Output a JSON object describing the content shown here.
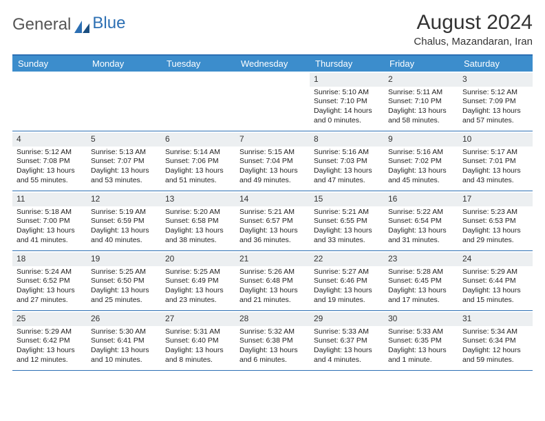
{
  "brand": {
    "part1": "General",
    "part2": "Blue"
  },
  "title": "August 2024",
  "location": "Chalus, Mazandaran, Iran",
  "colors": {
    "header_bg": "#3c8dcc",
    "border": "#2c6fb3",
    "daynum_bg": "#eceff1",
    "text": "#222222",
    "background": "#ffffff"
  },
  "dayNames": [
    "Sunday",
    "Monday",
    "Tuesday",
    "Wednesday",
    "Thursday",
    "Friday",
    "Saturday"
  ],
  "weeks": [
    [
      {
        "n": "",
        "sr": "",
        "ss": "",
        "dl": ""
      },
      {
        "n": "",
        "sr": "",
        "ss": "",
        "dl": ""
      },
      {
        "n": "",
        "sr": "",
        "ss": "",
        "dl": ""
      },
      {
        "n": "",
        "sr": "",
        "ss": "",
        "dl": ""
      },
      {
        "n": "1",
        "sr": "5:10 AM",
        "ss": "7:10 PM",
        "dl": "14 hours and 0 minutes."
      },
      {
        "n": "2",
        "sr": "5:11 AM",
        "ss": "7:10 PM",
        "dl": "13 hours and 58 minutes."
      },
      {
        "n": "3",
        "sr": "5:12 AM",
        "ss": "7:09 PM",
        "dl": "13 hours and 57 minutes."
      }
    ],
    [
      {
        "n": "4",
        "sr": "5:12 AM",
        "ss": "7:08 PM",
        "dl": "13 hours and 55 minutes."
      },
      {
        "n": "5",
        "sr": "5:13 AM",
        "ss": "7:07 PM",
        "dl": "13 hours and 53 minutes."
      },
      {
        "n": "6",
        "sr": "5:14 AM",
        "ss": "7:06 PM",
        "dl": "13 hours and 51 minutes."
      },
      {
        "n": "7",
        "sr": "5:15 AM",
        "ss": "7:04 PM",
        "dl": "13 hours and 49 minutes."
      },
      {
        "n": "8",
        "sr": "5:16 AM",
        "ss": "7:03 PM",
        "dl": "13 hours and 47 minutes."
      },
      {
        "n": "9",
        "sr": "5:16 AM",
        "ss": "7:02 PM",
        "dl": "13 hours and 45 minutes."
      },
      {
        "n": "10",
        "sr": "5:17 AM",
        "ss": "7:01 PM",
        "dl": "13 hours and 43 minutes."
      }
    ],
    [
      {
        "n": "11",
        "sr": "5:18 AM",
        "ss": "7:00 PM",
        "dl": "13 hours and 41 minutes."
      },
      {
        "n": "12",
        "sr": "5:19 AM",
        "ss": "6:59 PM",
        "dl": "13 hours and 40 minutes."
      },
      {
        "n": "13",
        "sr": "5:20 AM",
        "ss": "6:58 PM",
        "dl": "13 hours and 38 minutes."
      },
      {
        "n": "14",
        "sr": "5:21 AM",
        "ss": "6:57 PM",
        "dl": "13 hours and 36 minutes."
      },
      {
        "n": "15",
        "sr": "5:21 AM",
        "ss": "6:55 PM",
        "dl": "13 hours and 33 minutes."
      },
      {
        "n": "16",
        "sr": "5:22 AM",
        "ss": "6:54 PM",
        "dl": "13 hours and 31 minutes."
      },
      {
        "n": "17",
        "sr": "5:23 AM",
        "ss": "6:53 PM",
        "dl": "13 hours and 29 minutes."
      }
    ],
    [
      {
        "n": "18",
        "sr": "5:24 AM",
        "ss": "6:52 PM",
        "dl": "13 hours and 27 minutes."
      },
      {
        "n": "19",
        "sr": "5:25 AM",
        "ss": "6:50 PM",
        "dl": "13 hours and 25 minutes."
      },
      {
        "n": "20",
        "sr": "5:25 AM",
        "ss": "6:49 PM",
        "dl": "13 hours and 23 minutes."
      },
      {
        "n": "21",
        "sr": "5:26 AM",
        "ss": "6:48 PM",
        "dl": "13 hours and 21 minutes."
      },
      {
        "n": "22",
        "sr": "5:27 AM",
        "ss": "6:46 PM",
        "dl": "13 hours and 19 minutes."
      },
      {
        "n": "23",
        "sr": "5:28 AM",
        "ss": "6:45 PM",
        "dl": "13 hours and 17 minutes."
      },
      {
        "n": "24",
        "sr": "5:29 AM",
        "ss": "6:44 PM",
        "dl": "13 hours and 15 minutes."
      }
    ],
    [
      {
        "n": "25",
        "sr": "5:29 AM",
        "ss": "6:42 PM",
        "dl": "13 hours and 12 minutes."
      },
      {
        "n": "26",
        "sr": "5:30 AM",
        "ss": "6:41 PM",
        "dl": "13 hours and 10 minutes."
      },
      {
        "n": "27",
        "sr": "5:31 AM",
        "ss": "6:40 PM",
        "dl": "13 hours and 8 minutes."
      },
      {
        "n": "28",
        "sr": "5:32 AM",
        "ss": "6:38 PM",
        "dl": "13 hours and 6 minutes."
      },
      {
        "n": "29",
        "sr": "5:33 AM",
        "ss": "6:37 PM",
        "dl": "13 hours and 4 minutes."
      },
      {
        "n": "30",
        "sr": "5:33 AM",
        "ss": "6:35 PM",
        "dl": "13 hours and 1 minute."
      },
      {
        "n": "31",
        "sr": "5:34 AM",
        "ss": "6:34 PM",
        "dl": "12 hours and 59 minutes."
      }
    ]
  ],
  "labels": {
    "sunrise": "Sunrise:",
    "sunset": "Sunset:",
    "daylight": "Daylight:"
  }
}
